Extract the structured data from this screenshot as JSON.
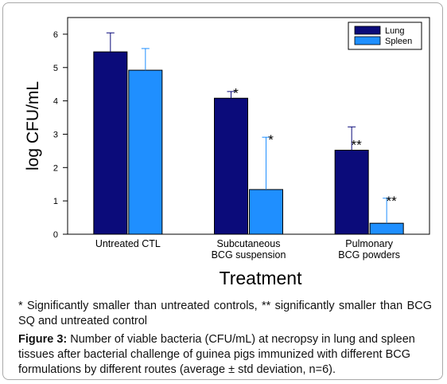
{
  "chart_data": {
    "type": "bar",
    "xlabel": "Treatment",
    "ylabel": "log CFU/mL",
    "ylim": [
      0,
      6.5
    ],
    "yticks": [
      0,
      1,
      2,
      3,
      4,
      5,
      6
    ],
    "categories": [
      [
        "Untreated CTL"
      ],
      [
        "Subcutaneous",
        "BCG suspension"
      ],
      [
        "Pulmonary",
        "BCG powders"
      ]
    ],
    "series": [
      {
        "name": "Lung",
        "color": "#0b0b7a",
        "values": [
          5.47,
          4.08,
          2.52
        ],
        "errors": [
          0.57,
          0.2,
          0.7
        ],
        "marks": [
          "",
          "*",
          "**"
        ]
      },
      {
        "name": "Spleen",
        "color": "#1f8fff",
        "values": [
          4.92,
          1.34,
          0.33
        ],
        "errors": [
          0.65,
          1.57,
          0.75
        ],
        "marks": [
          "",
          "*",
          "**"
        ]
      }
    ],
    "legend_position": "top-right",
    "grid": false
  },
  "note": "* Significantly smaller than untreated controls, ** significantly smaller than BCG SQ and untreated control",
  "caption": {
    "label": "Figure 3:",
    "text": " Number of viable bacteria (CFU/mL) at necropsy in lung and spleen tissues  after bacterial challenge of guinea pigs immunized with different BCG formulations by different routes (average ± std deviation, n=6)."
  }
}
